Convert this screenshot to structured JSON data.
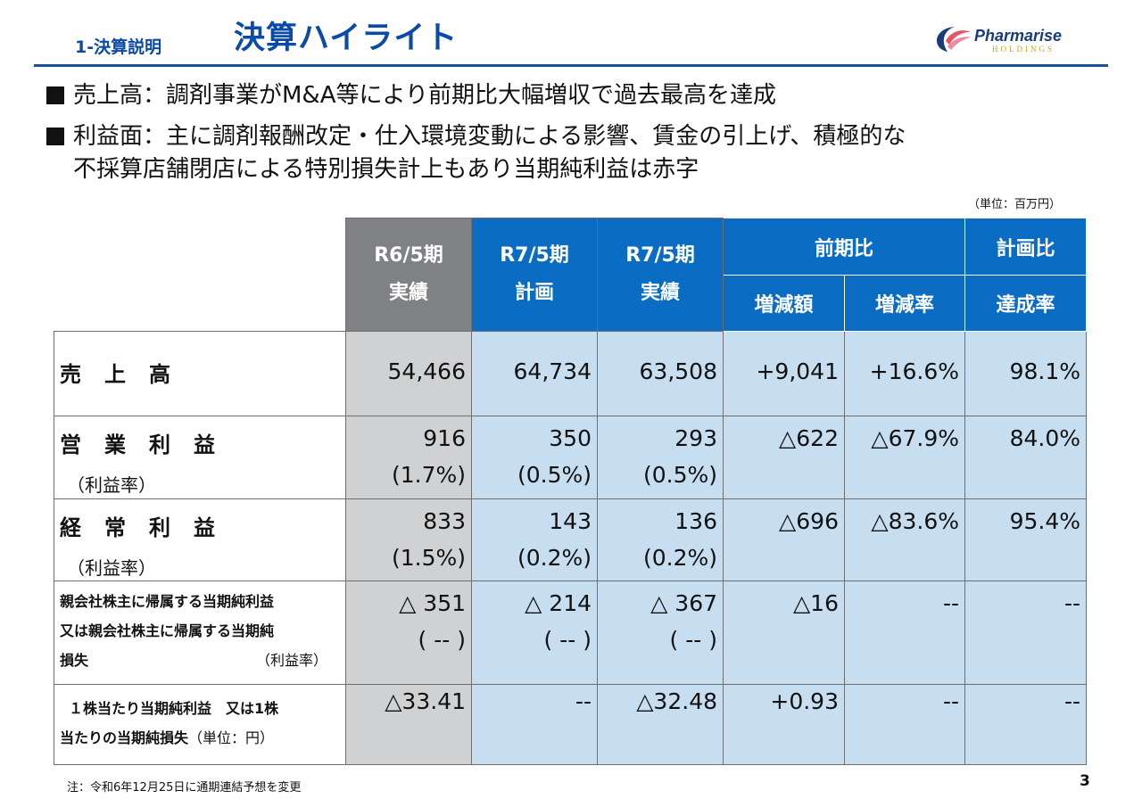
{
  "header": {
    "section": "1-決算説明",
    "title": "決算ハイライト",
    "logo_name": "Pharmarise",
    "logo_sub": "HOLDINGS"
  },
  "bullets": [
    "売上高：調剤事業がM&A等により前期比大幅増収で過去最高を達成",
    "利益面：主に調剤報酬改定・仕入環境変動による影響、賃金の引上げ、積極的な",
    "不採算店舗閉店による特別損失計上もあり当期純利益は赤字"
  ],
  "unit": "（単位：百万円）",
  "table": {
    "headers": {
      "col1_line1": "R6/5期",
      "col1_line2": "実績",
      "col2_line1": "R7/5期",
      "col2_line2": "計画",
      "col3_line1": "R7/5期",
      "col3_line2": "実績",
      "yoy": "前期比",
      "yoy_amount": "増減額",
      "yoy_rate": "増減率",
      "plan": "計画比",
      "plan_rate": "達成率"
    },
    "rows": [
      {
        "label": "売　上　高",
        "sub": "",
        "r6": "54,466",
        "r6_sub": "",
        "plan": "64,734",
        "plan_sub": "",
        "r7": "63,508",
        "r7_sub": "",
        "diff": "+9,041",
        "rate": "+16.6%",
        "achieve": "98.1%"
      },
      {
        "label": "営　業　利　益",
        "sub": "（利益率）",
        "r6": "916",
        "r6_sub": "(1.7%)",
        "plan": "350",
        "plan_sub": "(0.5%)",
        "r7": "293",
        "r7_sub": "(0.5%)",
        "diff": "△622",
        "rate": "△67.9%",
        "achieve": "84.0%"
      },
      {
        "label": "経　常　利　益",
        "sub": "（利益率）",
        "r6": "833",
        "r6_sub": "(1.5%)",
        "plan": "143",
        "plan_sub": "(0.2%)",
        "r7": "136",
        "r7_sub": "(0.2%)",
        "diff": "△696",
        "rate": "△83.6%",
        "achieve": "95.4%"
      },
      {
        "label_l1": "親会社株主に帰属する当期純利益",
        "label_l2": "又は親会社株主に帰属する当期純",
        "label_l3": "損失",
        "label_rate": "（利益率）",
        "r6": "△ 351",
        "r6_sub": "( -- )",
        "plan": "△ 214",
        "plan_sub": "( -- )",
        "r7": "△ 367",
        "r7_sub": "( -- )",
        "diff": "△16",
        "rate": "--",
        "achieve": "--"
      },
      {
        "label_l1": "１株当たり当期純利益　又は1株",
        "label_l2": "当たりの当期純損失",
        "label_unit": "（単位：円）",
        "r6": "△33.41",
        "plan": "--",
        "r7": "△32.48",
        "diff": "+0.93",
        "rate": "--",
        "achieve": "--"
      }
    ]
  },
  "footer": {
    "note": "注：令和6年12月25日に通期連結予想を変更",
    "page": "3"
  },
  "colors": {
    "brand_blue": "#0a4aa8",
    "header_blue": "#0a6cc3",
    "header_gray": "#7f8184",
    "cell_blue": "#c6def0",
    "cell_gray": "#d0d1d3"
  }
}
